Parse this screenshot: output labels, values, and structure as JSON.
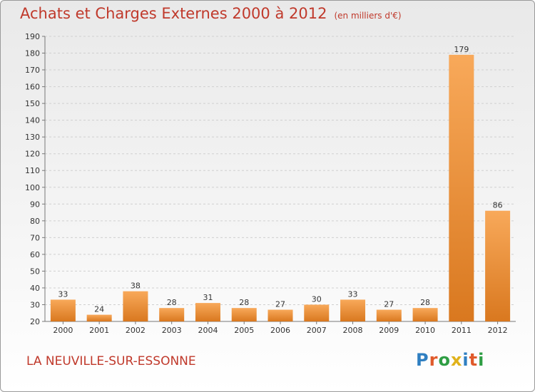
{
  "title": "Achats et Charges Externes 2000 à 2012",
  "unit": "(en milliers d'€)",
  "city": "LA NEUVILLE-SUR-ESSONNE",
  "logo": {
    "letters": [
      "P",
      "r",
      "o",
      "x",
      "i",
      "t",
      "i"
    ],
    "colors": [
      "#2f7fc1",
      "#e05a2b",
      "#2f9e44",
      "#e0b21b",
      "#2f7fc1",
      "#e05a2b",
      "#2f9e44"
    ]
  },
  "colors": {
    "bar_light": "#f8a95a",
    "bar_dark": "#d9781f",
    "title": "#c0392b"
  },
  "chart_data": {
    "type": "bar",
    "categories": [
      "2000",
      "2001",
      "2002",
      "2003",
      "2004",
      "2005",
      "2006",
      "2007",
      "2008",
      "2009",
      "2010",
      "2011",
      "2012"
    ],
    "values": [
      33,
      24,
      38,
      28,
      31,
      28,
      27,
      30,
      33,
      27,
      28,
      179,
      86
    ],
    "ylim": [
      20,
      190
    ],
    "yticks": [
      20,
      30,
      40,
      50,
      60,
      70,
      80,
      90,
      100,
      110,
      120,
      130,
      140,
      150,
      160,
      170,
      180,
      190
    ],
    "grid": true
  }
}
